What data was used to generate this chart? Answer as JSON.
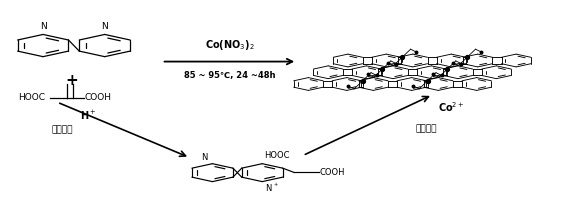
{
  "background_color": "#ffffff",
  "fig_width": 5.66,
  "fig_height": 2.15,
  "dpi": 100,
  "text_color": "#000000",
  "arrow_color": "#000000",
  "top_arrow_label1": "Co(NO$_3$)$_2$",
  "top_arrow_label2": "85 ~ 95℃, 24 ~48h",
  "bottom_left_label1": "H$^+$",
  "bottom_left_label2": "亲电加成",
  "bottom_right_label1": "Co$^{2+}$",
  "bottom_right_label2": "原位配位"
}
